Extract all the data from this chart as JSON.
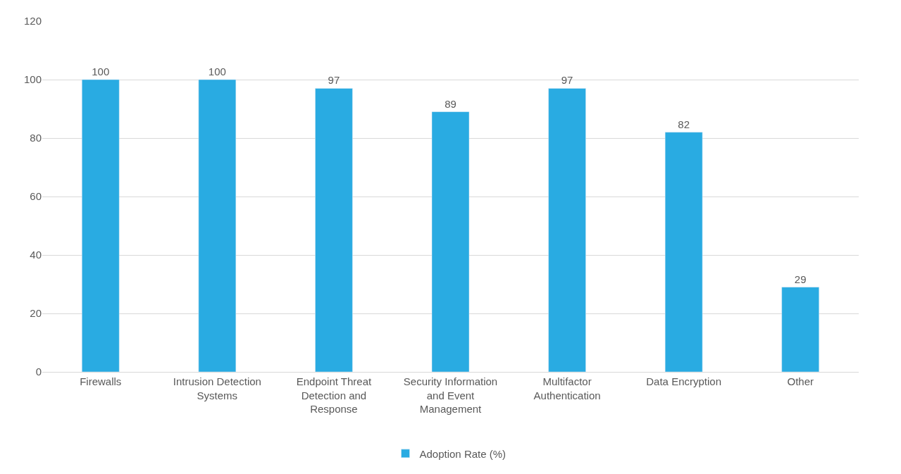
{
  "chart_data": {
    "type": "bar",
    "categories": [
      "Firewalls",
      "Intrusion Detection\nSystems",
      "Endpoint Threat\nDetection and\nResponse",
      "Security Information\nand Event\nManagement",
      "Multifactor\nAuthentication",
      "Data Encryption",
      "Other"
    ],
    "series": [
      {
        "name": "Adoption Rate (%)",
        "color": "#29abe2",
        "values": [
          100,
          100,
          97,
          89,
          97,
          82,
          29
        ]
      }
    ],
    "ylim": [
      0,
      120
    ],
    "yticks": [
      0,
      20,
      40,
      60,
      80,
      100,
      120
    ],
    "grid": "y",
    "legend": "bottom",
    "data_labels": true
  }
}
